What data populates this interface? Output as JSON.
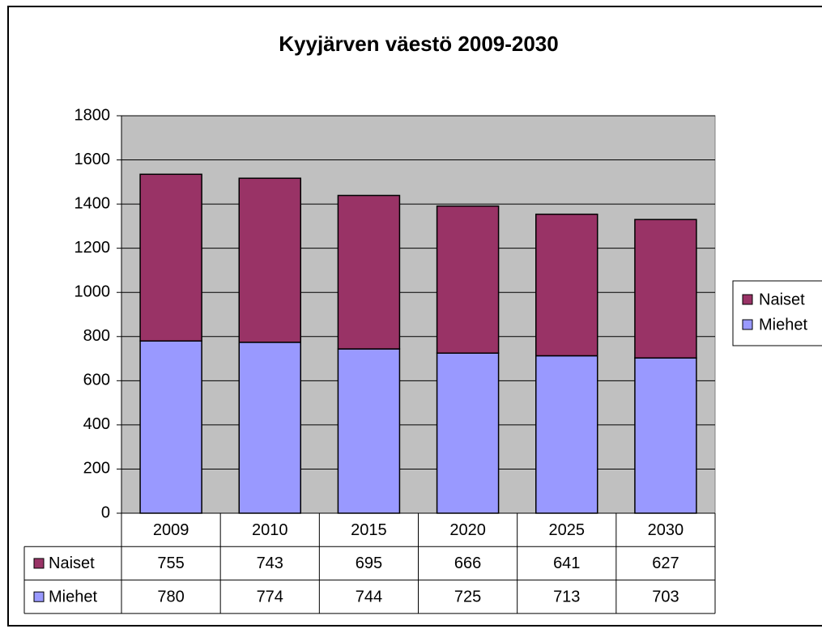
{
  "chart_data": {
    "type": "bar",
    "stacked": true,
    "title": "Kyyjärven väestö 2009-2030",
    "categories": [
      "2009",
      "2010",
      "2015",
      "2020",
      "2025",
      "2030"
    ],
    "series": [
      {
        "name": "Naiset",
        "color": "#993366",
        "values": [
          755,
          743,
          695,
          666,
          641,
          627
        ]
      },
      {
        "name": "Miehet",
        "color": "#9999ff",
        "values": [
          780,
          774,
          744,
          725,
          713,
          703
        ]
      }
    ],
    "ylim": [
      0,
      1800
    ],
    "yticks": [
      0,
      200,
      400,
      600,
      800,
      1000,
      1200,
      1400,
      1600,
      1800
    ],
    "grid": true,
    "legend": "right",
    "data_table": true
  }
}
